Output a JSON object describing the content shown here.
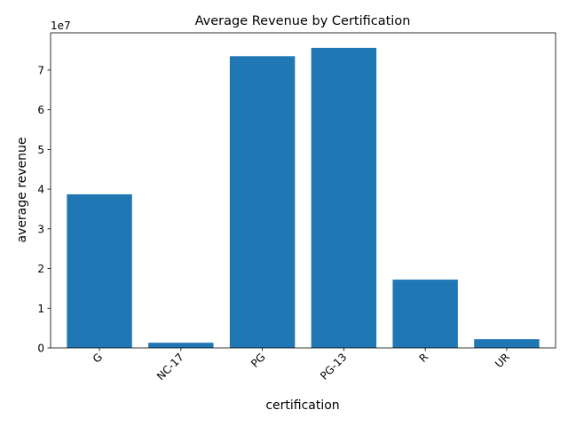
{
  "chart_data": {
    "type": "bar",
    "title": "Average Revenue by Certification",
    "xlabel": "certification",
    "ylabel": "average revenue",
    "categories": [
      "G",
      "NC-17",
      "PG",
      "PG-13",
      "R",
      "UR"
    ],
    "values": [
      38700000,
      1300000,
      73500000,
      75600000,
      17200000,
      2200000
    ],
    "ylim": [
      0,
      79380000
    ],
    "yticks": [
      0,
      10000000,
      20000000,
      30000000,
      40000000,
      50000000,
      60000000,
      70000000
    ],
    "ytick_labels": [
      "0",
      "1",
      "2",
      "3",
      "4",
      "5",
      "6",
      "7"
    ],
    "y_offset_label": "1e7",
    "x_tick_rotation": 45,
    "grid": false,
    "bar_color": "#1f77b4"
  }
}
